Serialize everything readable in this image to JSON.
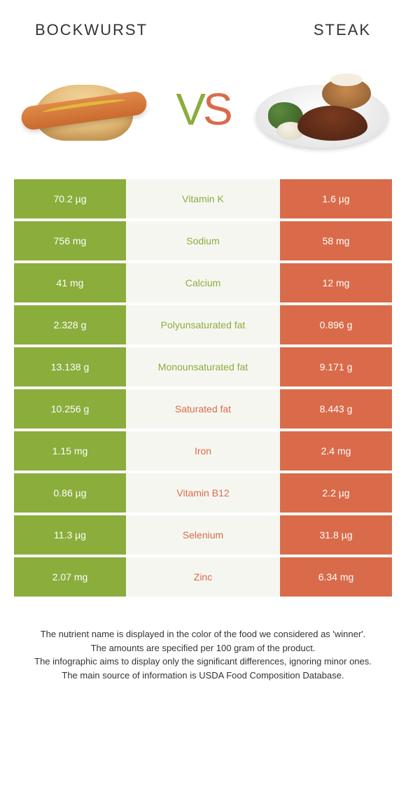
{
  "header": {
    "left": "BOCKWURST",
    "right": "STEAK"
  },
  "vs": {
    "v": "V",
    "s": "S"
  },
  "colors": {
    "left": "#8aad3c",
    "right": "#d96b4a",
    "mid_bg": "#f6f6f1"
  },
  "rows": [
    {
      "left": "70.2 µg",
      "label": "Vitamin K",
      "right": "1.6 µg",
      "winner": "left"
    },
    {
      "left": "756 mg",
      "label": "Sodium",
      "right": "58 mg",
      "winner": "left"
    },
    {
      "left": "41 mg",
      "label": "Calcium",
      "right": "12 mg",
      "winner": "left"
    },
    {
      "left": "2.328 g",
      "label": "Polyunsaturated fat",
      "right": "0.896 g",
      "winner": "left"
    },
    {
      "left": "13.138 g",
      "label": "Monounsaturated fat",
      "right": "9.171 g",
      "winner": "left"
    },
    {
      "left": "10.256 g",
      "label": "Saturated fat",
      "right": "8.443 g",
      "winner": "right"
    },
    {
      "left": "1.15 mg",
      "label": "Iron",
      "right": "2.4 mg",
      "winner": "right"
    },
    {
      "left": "0.86 µg",
      "label": "Vitamin B12",
      "right": "2.2 µg",
      "winner": "right"
    },
    {
      "left": "11.3 µg",
      "label": "Selenium",
      "right": "31.8 µg",
      "winner": "right"
    },
    {
      "left": "2.07 mg",
      "label": "Zinc",
      "right": "6.34 mg",
      "winner": "right"
    }
  ],
  "footnote": {
    "l1": "The nutrient name is displayed in the color of the food we considered as 'winner'.",
    "l2": "The amounts are specified per 100 gram of the product.",
    "l3": "The infographic aims to display only the significant differences, ignoring minor ones.",
    "l4": "The main source of information is USDA Food Composition Database."
  }
}
